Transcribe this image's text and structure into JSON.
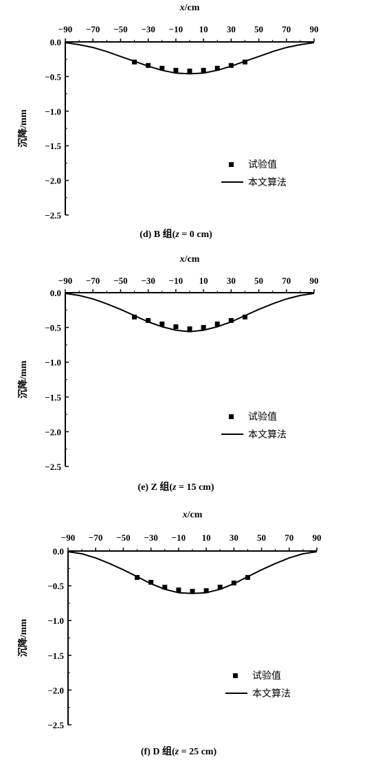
{
  "chart_data": [
    {
      "type": "line",
      "caption": "(d) B 组(z = 0 cm)",
      "xlabel": "x/cm",
      "ylabel": "沉降/mm",
      "xlim": [
        -90,
        90
      ],
      "ylim": [
        0,
        -2.5
      ],
      "x_ticks": [
        -90,
        -70,
        -50,
        -30,
        -10,
        10,
        30,
        50,
        70,
        90
      ],
      "x_tick_labels": [
        "−90",
        "−70",
        "−50",
        "−30",
        "−10",
        "10",
        "30",
        "50",
        "70",
        "90"
      ],
      "y_ticks": [
        0,
        -0.5,
        -1.0,
        -1.5,
        -2.0,
        -2.5
      ],
      "y_tick_labels": [
        "0.0",
        "−0.5",
        "−1.0",
        "−1.5",
        "−2.0",
        "−2.5"
      ],
      "legend": {
        "position": "right",
        "items": [
          "试验值",
          "本文算法"
        ]
      },
      "series": [
        {
          "name": "试验值",
          "kind": "scatter",
          "x": [
            -40,
            -30,
            -20,
            -10,
            0,
            10,
            20,
            30,
            40
          ],
          "y": [
            -0.29,
            -0.34,
            -0.38,
            -0.41,
            -0.42,
            -0.41,
            -0.38,
            -0.34,
            -0.29
          ]
        },
        {
          "name": "本文算法",
          "kind": "line",
          "x": [
            -90,
            -80,
            -70,
            -60,
            -50,
            -40,
            -30,
            -20,
            -10,
            0,
            10,
            20,
            30,
            40,
            50,
            60,
            70,
            80,
            90
          ],
          "y": [
            -0.01,
            -0.04,
            -0.08,
            -0.14,
            -0.21,
            -0.28,
            -0.35,
            -0.41,
            -0.45,
            -0.46,
            -0.45,
            -0.41,
            -0.35,
            -0.28,
            -0.21,
            -0.14,
            -0.08,
            -0.04,
            -0.01
          ]
        }
      ]
    },
    {
      "type": "line",
      "caption": "(e) Z 组(z = 15 cm)",
      "xlabel": "x/cm",
      "ylabel": "沉降/mm",
      "xlim": [
        -90,
        90
      ],
      "ylim": [
        0,
        -2.5
      ],
      "x_ticks": [
        -90,
        -70,
        -50,
        -30,
        -10,
        10,
        30,
        50,
        70,
        90
      ],
      "x_tick_labels": [
        "−90",
        "−70",
        "−50",
        "−30",
        "−10",
        "10",
        "30",
        "50",
        "70",
        "90"
      ],
      "y_ticks": [
        0,
        -0.5,
        -1.0,
        -1.5,
        -2.0,
        -2.5
      ],
      "y_tick_labels": [
        "0.0",
        "−0.5",
        "−1.0",
        "−1.5",
        "−2.0",
        "−2.5"
      ],
      "legend": {
        "position": "right",
        "items": [
          "试验值",
          "本文算法"
        ]
      },
      "series": [
        {
          "name": "试验值",
          "kind": "scatter",
          "x": [
            -40,
            -30,
            -20,
            -10,
            0,
            10,
            20,
            30,
            40
          ],
          "y": [
            -0.35,
            -0.4,
            -0.45,
            -0.49,
            -0.52,
            -0.5,
            -0.45,
            -0.4,
            -0.35
          ]
        },
        {
          "name": "本文算法",
          "kind": "line",
          "x": [
            -90,
            -80,
            -70,
            -60,
            -50,
            -40,
            -30,
            -20,
            -10,
            0,
            10,
            20,
            30,
            40,
            50,
            60,
            70,
            80,
            90
          ],
          "y": [
            -0.01,
            -0.04,
            -0.09,
            -0.16,
            -0.24,
            -0.33,
            -0.42,
            -0.49,
            -0.54,
            -0.56,
            -0.54,
            -0.49,
            -0.42,
            -0.33,
            -0.24,
            -0.16,
            -0.09,
            -0.04,
            -0.01
          ]
        }
      ]
    },
    {
      "type": "line",
      "caption": "(f) D 组(z = 25 cm)",
      "xlabel": "x/cm",
      "ylabel": "沉降/mm",
      "xlim": [
        -90,
        90
      ],
      "ylim": [
        0,
        -2.5
      ],
      "x_ticks": [
        -90,
        -70,
        -50,
        -30,
        -10,
        10,
        30,
        50,
        70,
        90
      ],
      "x_tick_labels": [
        "−90",
        "−70",
        "−50",
        "−30",
        "−10",
        "10",
        "30",
        "50",
        "70",
        "90"
      ],
      "y_ticks": [
        0,
        -0.5,
        -1.0,
        -1.5,
        -2.0,
        -2.5
      ],
      "y_tick_labels": [
        "0.0",
        "−0.5",
        "−1.0",
        "−1.5",
        "−2.0",
        "−2.5"
      ],
      "legend": {
        "position": "right",
        "items": [
          "试验值",
          "本文算法"
        ]
      },
      "series": [
        {
          "name": "试验值",
          "kind": "scatter",
          "x": [
            -40,
            -30,
            -20,
            -10,
            0,
            10,
            20,
            30,
            40
          ],
          "y": [
            -0.38,
            -0.45,
            -0.52,
            -0.56,
            -0.58,
            -0.57,
            -0.52,
            -0.46,
            -0.38
          ]
        },
        {
          "name": "本文算法",
          "kind": "line",
          "x": [
            -90,
            -80,
            -70,
            -60,
            -50,
            -40,
            -30,
            -20,
            -10,
            0,
            10,
            20,
            30,
            40,
            50,
            60,
            70,
            80,
            90
          ],
          "y": [
            -0.01,
            -0.04,
            -0.1,
            -0.18,
            -0.27,
            -0.37,
            -0.47,
            -0.55,
            -0.6,
            -0.61,
            -0.6,
            -0.55,
            -0.47,
            -0.37,
            -0.27,
            -0.18,
            -0.1,
            -0.04,
            -0.01
          ]
        }
      ]
    }
  ]
}
